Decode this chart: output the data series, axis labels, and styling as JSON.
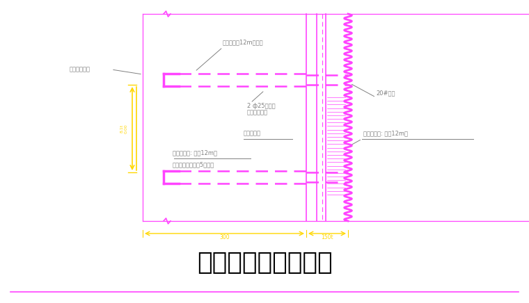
{
  "title": "钢板支撑平面布置图",
  "bg_color": "#ffffff",
  "mg": "#FF44FF",
  "yw": "#FFD700",
  "gy": "#808080",
  "bk": "#000000",
  "lw_main": 1.0,
  "lw_thick": 2.2,
  "ann1": "与钢板桩连接",
  "ann2": "拉条钢筋距12m十地锚",
  "ann3_a": "2 ф25螺纹钢",
  "ann3_b": "焊接成对间平",
  "ann4": "拼接处支座",
  "ann5_a": "拉条钢筋桩: 桩距12m长",
  "ann5_b": "冷钢带插大尹闸距5米布置",
  "ann6": "20#槽钢",
  "ann7": "拉条钢筋桩: 桩距12m长",
  "dim1": "300",
  "dim2": "150t"
}
